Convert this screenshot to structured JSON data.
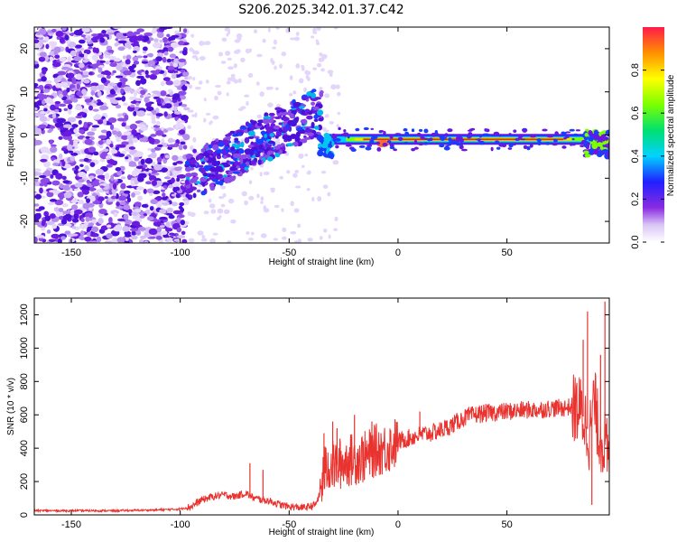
{
  "title": "S206.2025.342.01.37.C42",
  "chart_data": [
    {
      "type": "heatmap",
      "name": "spectrogram",
      "xlabel": "Height of straight line (km)",
      "ylabel": "Frequency (Hz)",
      "xlim": [
        -167,
        97
      ],
      "ylim": [
        -25,
        25
      ],
      "xticks": [
        -150,
        -100,
        -50,
        0,
        50
      ],
      "yticks": [
        -20,
        -10,
        0,
        10,
        20
      ],
      "colorbar": {
        "label": "Normalized spectral amplitude",
        "range": [
          0,
          1
        ],
        "ticks": [
          "0.0",
          "0.2",
          "0.4",
          "0.6",
          "0.8"
        ],
        "tick_values": [
          0,
          0.2,
          0.4,
          0.6,
          0.8
        ]
      },
      "features": [
        {
          "name": "noise-field",
          "x": [
            -167,
            -97
          ],
          "y": [
            -25,
            25
          ],
          "amplitude": 0.2
        },
        {
          "name": "chirp-ramp",
          "x_start": -97,
          "x_end": -35,
          "y_start": -10,
          "y_end": 6,
          "amplitude": 0.3
        },
        {
          "name": "steady-tone",
          "x_start": -35,
          "x_end": 97,
          "frequency": -1,
          "amplitude": 1.0
        }
      ]
    },
    {
      "type": "line",
      "name": "snr",
      "xlabel": "Height of straight line (km)",
      "ylabel": "SNR (10 * v/v)",
      "xlim": [
        -167,
        97
      ],
      "ylim": [
        0,
        1300
      ],
      "xticks": [
        -150,
        -100,
        -50,
        0,
        50
      ],
      "yticks": [
        0,
        200,
        400,
        600,
        800,
        1000,
        1200
      ],
      "color": "#e8332f",
      "x": [
        -167,
        -150,
        -130,
        -110,
        -100,
        -95,
        -90,
        -85,
        -80,
        -75,
        -70,
        -66,
        -62,
        -58,
        -54,
        -50,
        -46,
        -42,
        -38,
        -36,
        -34,
        -32,
        -30,
        -26,
        -22,
        -18,
        -14,
        -10,
        -5,
        0,
        5,
        10,
        15,
        20,
        25,
        30,
        35,
        40,
        45,
        50,
        55,
        60,
        65,
        70,
        75,
        80,
        84,
        86,
        88,
        90,
        92,
        95,
        97
      ],
      "values": [
        25,
        25,
        25,
        30,
        35,
        50,
        90,
        110,
        120,
        110,
        130,
        100,
        90,
        80,
        60,
        50,
        45,
        45,
        60,
        120,
        250,
        300,
        290,
        310,
        330,
        340,
        350,
        390,
        400,
        440,
        460,
        480,
        490,
        510,
        540,
        580,
        600,
        610,
        615,
        620,
        625,
        630,
        630,
        640,
        640,
        650,
        620,
        560,
        470,
        700,
        500,
        420,
        300
      ],
      "spikes": [
        {
          "x": -68,
          "value": 310
        },
        {
          "x": -62,
          "value": 270
        },
        {
          "x": -34,
          "value": 490
        },
        {
          "x": -30,
          "value": 560
        },
        {
          "x": -28,
          "value": 520
        },
        {
          "x": -20,
          "value": 600
        },
        {
          "x": -12,
          "value": 560
        },
        {
          "x": 10,
          "value": 620
        },
        {
          "x": 85,
          "value": 1050
        },
        {
          "x": 87,
          "value": 1220
        },
        {
          "x": 89,
          "value": 60
        },
        {
          "x": 93,
          "value": 960
        },
        {
          "x": 95,
          "value": 1280
        }
      ]
    }
  ]
}
